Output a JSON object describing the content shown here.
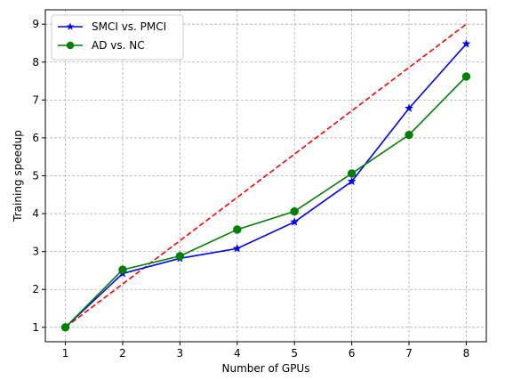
{
  "chart_data": {
    "type": "line",
    "title": "",
    "xlabel": "Number of GPUs",
    "ylabel": "Training speedup",
    "xlim": [
      0.65,
      8.35
    ],
    "ylim": [
      0.62,
      9.38
    ],
    "xticks": [
      "1",
      "2",
      "3",
      "4",
      "5",
      "6",
      "7",
      "8"
    ],
    "yticks": [
      "1",
      "2",
      "3",
      "4",
      "5",
      "6",
      "7",
      "8",
      "9"
    ],
    "grid": true,
    "legend_position": "top-left",
    "x": [
      1,
      2,
      3,
      4,
      5,
      6,
      7,
      8
    ],
    "series": [
      {
        "name": "SMCI vs. PMCI",
        "color": "#0000ff",
        "marker": "star",
        "linestyle": "solid",
        "values": [
          1.0,
          2.42,
          2.82,
          3.08,
          3.78,
          4.85,
          6.78,
          8.48
        ]
      },
      {
        "name": "AD vs. NC",
        "color": "#008000",
        "marker": "circle",
        "linestyle": "solid",
        "values": [
          1.0,
          2.52,
          2.88,
          3.58,
          4.06,
          5.06,
          6.08,
          7.62
        ]
      },
      {
        "name": "",
        "color": "#ff0000",
        "marker": "none",
        "linestyle": "dashed",
        "values": [
          1,
          2.143,
          3.286,
          4.429,
          5.571,
          6.714,
          7.857,
          9.0
        ]
      }
    ]
  }
}
